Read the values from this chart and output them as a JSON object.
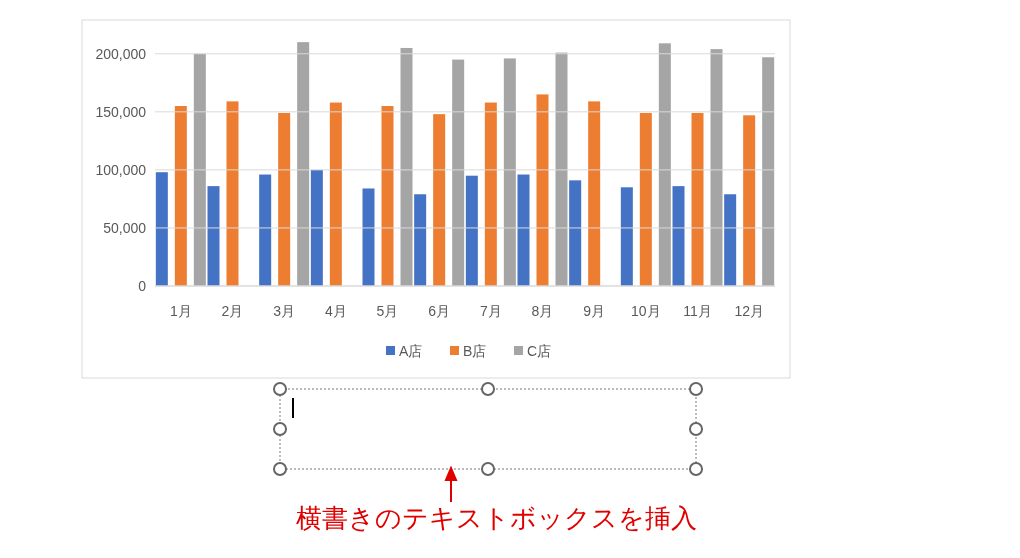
{
  "chart_data": {
    "type": "bar",
    "categories": [
      "1月",
      "2月",
      "3月",
      "4月",
      "5月",
      "6月",
      "7月",
      "8月",
      "9月",
      "10月",
      "11月",
      "12月"
    ],
    "series": [
      {
        "name": "A店",
        "color": "#4472c4",
        "values": [
          98000,
          86000,
          96000,
          100000,
          84000,
          79000,
          95000,
          96000,
          91000,
          85000,
          86000,
          79000
        ]
      },
      {
        "name": "B店",
        "color": "#ed7d31",
        "values": [
          155000,
          159000,
          149000,
          158000,
          155000,
          148000,
          158000,
          165000,
          159000,
          149000,
          149000,
          147000
        ]
      },
      {
        "name": "C店",
        "color": "#a5a5a5",
        "values": [
          200000,
          null,
          210000,
          null,
          205000,
          195000,
          196000,
          201000,
          null,
          209000,
          204000,
          197000
        ]
      }
    ],
    "ylim": [
      0,
      211000
    ],
    "yticks": [
      0,
      {
        "value": 50000,
        "label": "50,000"
      },
      {
        "value": 100000,
        "label": "100,000"
      },
      {
        "value": 150000,
        "label": "150,000"
      },
      {
        "value": 200000,
        "label": "200,000"
      }
    ],
    "grid": "y",
    "legend": "bottom",
    "annotations": [
      "横書きのテキストボックスを挿入"
    ]
  }
}
